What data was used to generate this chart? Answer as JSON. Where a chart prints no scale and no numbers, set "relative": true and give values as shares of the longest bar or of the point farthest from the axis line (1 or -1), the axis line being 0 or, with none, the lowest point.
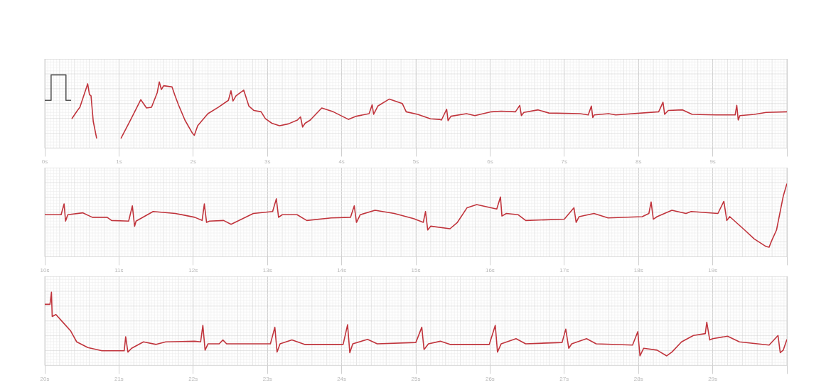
{
  "chart_data": [
    {
      "type": "line",
      "relative": true,
      "xlim": [
        0,
        10
      ],
      "xticks": [
        {
          "value": 0,
          "label": "0s"
        },
        {
          "value": 1,
          "label": "1s"
        },
        {
          "value": 2,
          "label": "2s"
        },
        {
          "value": 3,
          "label": "3s"
        },
        {
          "value": 4,
          "label": "4s"
        },
        {
          "value": 5,
          "label": "5s"
        },
        {
          "value": 6,
          "label": "6s"
        },
        {
          "value": 7,
          "label": "7s"
        },
        {
          "value": 8,
          "label": "8s"
        },
        {
          "value": 9,
          "label": "9s"
        },
        {
          "value": 10,
          "label": null
        }
      ],
      "grid": true,
      "tick_labels": "x",
      "series": [
        {
          "color": "#555555",
          "x": [
            0,
            0.085,
            0.085,
            0.285,
            0.285,
            0.355
          ],
          "values": [
            0.6,
            0.6,
            1,
            1,
            0.6,
            0.6
          ]
        },
        {
          "color": "#c0343c",
          "x": [
            0.364,
            0.44,
            0.473,
            0.578,
            0.602,
            0.623,
            0.653,
            0.699,
            0.85,
            1.026,
            1.164,
            1.293,
            1.371,
            1.438,
            1.515,
            1.543,
            1.571,
            1.602,
            1.715,
            1.75,
            1.801,
            1.888,
            1.991,
            2.015,
            2.06,
            2.198,
            2.336,
            2.474,
            2.509,
            2.536,
            2.577,
            2.681,
            2.75,
            2.819,
            2.915,
            2.973,
            3.06,
            3.163,
            3.282,
            3.404,
            3.446,
            3.474,
            3.508,
            3.577,
            3.732,
            3.887,
            4.093,
            4.198,
            4.37,
            4.411,
            4.431,
            4.488,
            4.643,
            4.817,
            4.87,
            5.025,
            5.197,
            5.319,
            5.345,
            5.415,
            5.434,
            5.473,
            5.682,
            5.795,
            6.02,
            6.149,
            6.342,
            6.4,
            6.422,
            6.455,
            6.648,
            6.793,
            7.211,
            7.323,
            7.365,
            7.384,
            7.404,
            7.597,
            7.693,
            8.272,
            8.33,
            8.352,
            8.401,
            8.594,
            8.723,
            9.044,
            9.302,
            9.324,
            9.344,
            9.366,
            9.559,
            9.72,
            10
          ],
          "values": [
            0.31,
            0.44,
            0.49,
            0.86,
            0.69,
            0.67,
            0.27,
            0,
            null,
            0,
            0.31,
            0.61,
            0.48,
            0.49,
            0.72,
            0.89,
            0.77,
            0.83,
            0.81,
            0.69,
            0.53,
            0.29,
            0.08,
            0.05,
            0.2,
            0.39,
            0.49,
            0.6,
            0.75,
            0.59,
            0.67,
            0.76,
            0.51,
            0.44,
            0.42,
            0.31,
            0.24,
            0.2,
            0.23,
            0.29,
            0.34,
            0.18,
            0.24,
            0.29,
            0.48,
            0.42,
            0.3,
            0.35,
            0.39,
            0.53,
            0.38,
            0.51,
            0.62,
            0.55,
            0.42,
            0.38,
            0.31,
            0.3,
            0.29,
            0.46,
            0.28,
            0.35,
            0.39,
            0.36,
            0.42,
            0.43,
            0.42,
            0.52,
            0.36,
            0.41,
            0.45,
            0.4,
            0.39,
            0.37,
            0.51,
            0.33,
            0.37,
            0.39,
            0.37,
            0.42,
            0.57,
            0.38,
            0.44,
            0.45,
            0.38,
            0.37,
            0.37,
            0.52,
            0.29,
            0.36,
            0.38,
            0.41,
            0.42
          ]
        }
      ]
    },
    {
      "type": "line",
      "relative": true,
      "xlim": [
        10,
        20
      ],
      "xticks": [
        {
          "value": 10,
          "label": "10s"
        },
        {
          "value": 11,
          "label": "11s"
        },
        {
          "value": 12,
          "label": "12s"
        },
        {
          "value": 13,
          "label": "13s"
        },
        {
          "value": 14,
          "label": "14s"
        },
        {
          "value": 15,
          "label": "15s"
        },
        {
          "value": 16,
          "label": "16s"
        },
        {
          "value": 17,
          "label": "17s"
        },
        {
          "value": 18,
          "label": "18s"
        },
        {
          "value": 19,
          "label": "19s"
        },
        {
          "value": 20,
          "label": null
        }
      ],
      "grid": true,
      "tick_labels": "x",
      "series": [
        {
          "color": "#c0343c",
          "x": [
            10,
            10.22,
            10.26,
            10.28,
            10.31,
            10.51,
            10.64,
            10.84,
            10.9,
            11.13,
            11.18,
            11.21,
            11.23,
            11.46,
            11.76,
            12.02,
            12.12,
            12.15,
            12.18,
            12.22,
            12.41,
            12.51,
            12.81,
            13.07,
            13.12,
            13.15,
            13.2,
            13.4,
            13.53,
            13.86,
            14.12,
            14.17,
            14.2,
            14.25,
            14.45,
            14.71,
            14.97,
            15.1,
            15.13,
            15.16,
            15.2,
            15.46,
            15.56,
            15.69,
            15.82,
            16.09,
            16.14,
            16.16,
            16.22,
            16.38,
            16.48,
            17,
            17.13,
            17.16,
            17.2,
            17.4,
            17.59,
            18.05,
            18.14,
            18.17,
            18.2,
            18.25,
            18.45,
            18.64,
            18.71,
            19.07,
            19.15,
            19.19,
            19.23,
            19.43,
            19.56,
            19.72,
            19.76,
            19.79,
            19.86,
            19.95,
            20
          ],
          "values": [
            0.51,
            0.51,
            0.68,
            0.41,
            0.51,
            0.54,
            0.47,
            0.47,
            0.42,
            0.41,
            0.65,
            0.33,
            0.41,
            0.56,
            0.53,
            0.47,
            0.42,
            0.68,
            0.39,
            0.41,
            0.42,
            0.36,
            0.53,
            0.56,
            0.76,
            0.47,
            0.51,
            0.51,
            0.42,
            0.46,
            0.47,
            0.65,
            0.39,
            0.51,
            0.58,
            0.53,
            0.45,
            0.39,
            0.56,
            0.27,
            0.33,
            0.29,
            0.39,
            0.62,
            0.67,
            0.6,
            0.79,
            0.49,
            0.53,
            0.51,
            0.42,
            0.44,
            0.62,
            0.39,
            0.48,
            0.53,
            0.46,
            0.48,
            0.53,
            0.71,
            0.44,
            0.48,
            0.58,
            0.53,
            0.56,
            0.53,
            0.72,
            0.42,
            0.48,
            0.27,
            0.13,
            0.01,
            0,
            0.09,
            0.27,
            0.8,
            1
          ]
        }
      ]
    },
    {
      "type": "line",
      "relative": true,
      "xlim": [
        20,
        30
      ],
      "xticks": [
        {
          "value": 20,
          "label": "20s"
        },
        {
          "value": 21,
          "label": "21s"
        },
        {
          "value": 22,
          "label": "22s"
        },
        {
          "value": 23,
          "label": "23s"
        },
        {
          "value": 24,
          "label": "24s"
        },
        {
          "value": 25,
          "label": "25s"
        },
        {
          "value": 26,
          "label": "26s"
        },
        {
          "value": 27,
          "label": "27s"
        },
        {
          "value": 28,
          "label": "28s"
        },
        {
          "value": 29,
          "label": "29s"
        },
        {
          "value": 30,
          "label": null
        }
      ],
      "grid": true,
      "tick_labels": "x",
      "series": [
        {
          "color": "#c0343c",
          "x": [
            20,
            20.07,
            20.09,
            20.1,
            20.15,
            20.25,
            20.35,
            20.43,
            20.58,
            20.77,
            21.07,
            21.09,
            21.12,
            21.17,
            21.33,
            21.5,
            21.63,
            22.02,
            22.1,
            22.13,
            22.16,
            22.2,
            22.35,
            22.4,
            22.45,
            23.04,
            23.1,
            23.13,
            23.17,
            23.33,
            23.5,
            24.02,
            24.08,
            24.11,
            24.15,
            24.35,
            24.48,
            25,
            25.08,
            25.11,
            25.17,
            25.33,
            25.46,
            25.99,
            26.07,
            26.1,
            26.15,
            26.35,
            26.48,
            26.97,
            27.02,
            27.06,
            27.1,
            27.3,
            27.43,
            27.92,
            27.99,
            28.02,
            28.07,
            28.25,
            28.38,
            28.45,
            28.58,
            28.74,
            28.9,
            28.92,
            28.96,
            29,
            29.2,
            29.36,
            29.76,
            29.88,
            29.91,
            29.95,
            30
          ],
          "values": [
            0.81,
            0.81,
            1,
            0.62,
            0.65,
            0.52,
            0.39,
            0.22,
            0.13,
            0.08,
            0.08,
            0.3,
            0.06,
            0.12,
            0.22,
            0.18,
            0.22,
            0.23,
            0.22,
            0.48,
            0.09,
            0.19,
            0.19,
            0.25,
            0.19,
            0.19,
            0.45,
            0.06,
            0.19,
            0.25,
            0.18,
            0.18,
            0.49,
            0.05,
            0.19,
            0.26,
            0.19,
            0.21,
            0.45,
            0.1,
            0.19,
            0.23,
            0.18,
            0.18,
            0.48,
            0.06,
            0.19,
            0.27,
            0.19,
            0.21,
            0.42,
            0.12,
            0.19,
            0.27,
            0.19,
            0.17,
            0.38,
            0,
            0.12,
            0.09,
            0,
            0.06,
            0.22,
            0.32,
            0.35,
            0.53,
            0.25,
            0.27,
            0.31,
            0.22,
            0.17,
            0.32,
            0.05,
            0.09,
            0.26
          ]
        }
      ]
    }
  ]
}
